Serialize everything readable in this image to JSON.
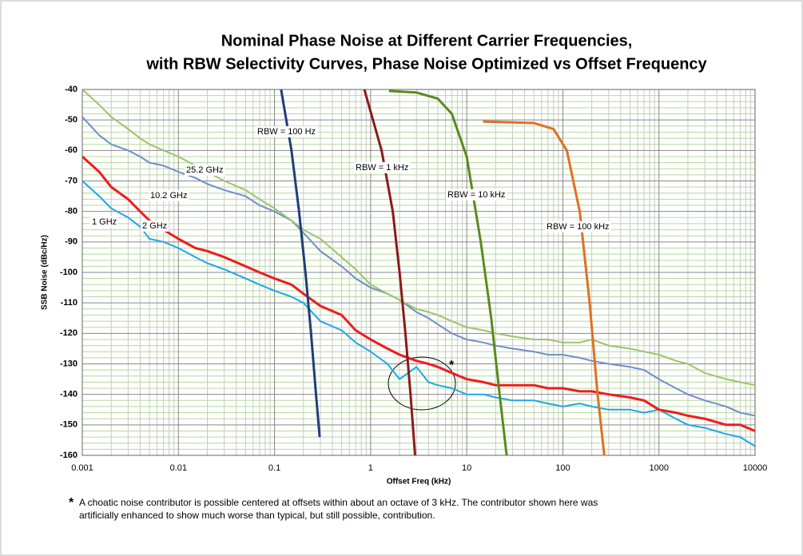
{
  "chart_data": {
    "type": "line",
    "title": [
      "Nominal Phase Noise at Different Carrier Frequencies,",
      "with RBW Selectivity Curves, Phase Noise Optimized vs Offset Frequency"
    ],
    "xlabel": "Offset Freq (kHz)",
    "ylabel": "SSB Noise (dBc/Hz)",
    "xscale": "log",
    "xlim": [
      0.001,
      10000
    ],
    "xticks": [
      0.001,
      0.01,
      0.1,
      1,
      10,
      100,
      1000,
      10000
    ],
    "ylim": [
      -160,
      -40
    ],
    "yticks": [
      -160,
      -150,
      -140,
      -130,
      -120,
      -110,
      -100,
      -90,
      -80,
      -70,
      -60,
      -50,
      -40
    ],
    "grid": true,
    "minor_grid": true,
    "series": [
      {
        "name": "1 GHz",
        "color": "#1ea7e6",
        "x": [
          0.001,
          0.0015,
          0.002,
          0.003,
          0.004,
          0.005,
          0.007,
          0.01,
          0.015,
          0.02,
          0.03,
          0.05,
          0.07,
          0.1,
          0.15,
          0.2,
          0.3,
          0.5,
          0.7,
          1,
          1.5,
          2,
          3,
          4,
          5,
          7,
          10,
          15,
          20,
          30,
          50,
          70,
          100,
          150,
          200,
          300,
          500,
          700,
          1000,
          1500,
          2000,
          3000,
          5000,
          7000,
          10000
        ],
        "values": [
          -70,
          -75,
          -79,
          -82,
          -85,
          -89,
          -90,
          -92,
          -95,
          -97,
          -99,
          -102,
          -104,
          -106,
          -108,
          -110,
          -116,
          -119,
          -123,
          -126,
          -130,
          -135,
          -131,
          -136,
          -137,
          -138,
          -140,
          -140,
          -141,
          -142,
          -142,
          -143,
          -144,
          -143,
          -144,
          -145,
          -145,
          -146,
          -145,
          -148,
          -150,
          -151,
          -153,
          -154,
          -157
        ]
      },
      {
        "name": "2 GHz",
        "color": "#ee1c1c",
        "x": [
          0.001,
          0.0015,
          0.002,
          0.003,
          0.004,
          0.005,
          0.007,
          0.01,
          0.015,
          0.02,
          0.03,
          0.05,
          0.07,
          0.1,
          0.15,
          0.2,
          0.3,
          0.5,
          0.7,
          1,
          1.5,
          2,
          3,
          4,
          5,
          7,
          10,
          15,
          20,
          30,
          50,
          70,
          100,
          150,
          200,
          300,
          500,
          700,
          1000,
          1500,
          2000,
          3000,
          5000,
          7000,
          10000
        ],
        "values": [
          -62,
          -67,
          -72,
          -76,
          -80,
          -83,
          -86,
          -89,
          -92,
          -93,
          -95,
          -98,
          -100,
          -102,
          -104,
          -107,
          -111,
          -114,
          -119,
          -122,
          -125,
          -127,
          -129,
          -130,
          -131,
          -133,
          -135,
          -136,
          -137,
          -137,
          -137,
          -138,
          -138,
          -139,
          -139,
          -140,
          -141,
          -142,
          -145,
          -146,
          -147,
          -148,
          -150,
          -150,
          -152
        ]
      },
      {
        "name": "10.2 GHz",
        "color": "#6f8fc9",
        "x": [
          0.001,
          0.0015,
          0.002,
          0.003,
          0.004,
          0.005,
          0.007,
          0.01,
          0.015,
          0.02,
          0.03,
          0.05,
          0.07,
          0.1,
          0.15,
          0.2,
          0.3,
          0.5,
          0.7,
          1,
          1.5,
          2,
          3,
          4,
          5,
          7,
          10,
          15,
          20,
          30,
          50,
          70,
          100,
          150,
          200,
          300,
          500,
          700,
          1000,
          1500,
          2000,
          3000,
          5000,
          7000,
          10000
        ],
        "values": [
          -49,
          -55,
          -58,
          -60,
          -62,
          -64,
          -65,
          -67,
          -69,
          -71,
          -73,
          -75,
          -78,
          -80,
          -83,
          -87,
          -93,
          -98,
          -102,
          -105,
          -107,
          -109,
          -113,
          -115,
          -117,
          -120,
          -122,
          -123,
          -124,
          -125,
          -126,
          -127,
          -127,
          -128,
          -129,
          -130,
          -131,
          -132,
          -135,
          -138,
          -140,
          -142,
          -144,
          -146,
          -147
        ]
      },
      {
        "name": "25.2 GHz",
        "color": "#9dc36b",
        "x": [
          0.001,
          0.0015,
          0.002,
          0.003,
          0.004,
          0.005,
          0.007,
          0.01,
          0.015,
          0.02,
          0.03,
          0.05,
          0.07,
          0.1,
          0.15,
          0.2,
          0.3,
          0.5,
          0.7,
          1,
          1.5,
          2,
          3,
          4,
          5,
          7,
          10,
          15,
          20,
          30,
          50,
          70,
          100,
          150,
          200,
          300,
          500,
          700,
          1000,
          1500,
          2000,
          3000,
          5000,
          7000,
          10000
        ],
        "values": [
          -40,
          -45,
          -49,
          -53,
          -56,
          -58,
          -60,
          -62,
          -65,
          -67,
          -70,
          -73,
          -76,
          -79,
          -83,
          -86,
          -89,
          -95,
          -99,
          -104,
          -107,
          -109,
          -112,
          -113,
          -114,
          -116,
          -118,
          -119,
          -120,
          -121,
          -122,
          -122,
          -123,
          -123,
          -122,
          -124,
          -125,
          -126,
          -127,
          -129,
          -130,
          -133,
          -135,
          -136,
          -137
        ]
      },
      {
        "name": "RBW = 100 Hz",
        "color": "#1f3d7a",
        "x": [
          0.117,
          0.15,
          0.18,
          0.21,
          0.24,
          0.27,
          0.295
        ],
        "values": [
          -40,
          -60,
          -80,
          -100,
          -120,
          -140,
          -154
        ]
      },
      {
        "name": "RBW = 1 kHz",
        "color": "#8b1a1a",
        "x": [
          0.86,
          1.3,
          1.7,
          2.0,
          2.3,
          2.6,
          2.9
        ],
        "values": [
          -40,
          -60,
          -80,
          -100,
          -120,
          -140,
          -160
        ]
      },
      {
        "name": "RBW = 10 kHz",
        "color": "#5a8a1e",
        "x": [
          1.55,
          3,
          5,
          7,
          10,
          14,
          18,
          22,
          26
        ],
        "values": [
          -40.5,
          -41,
          -43,
          -48,
          -62,
          -90,
          -115,
          -140,
          -160
        ]
      },
      {
        "name": "RBW = 100 kHz",
        "color": "#e07020",
        "x": [
          14.8,
          50,
          80,
          110,
          150,
          190,
          230,
          270
        ],
        "values": [
          -50.5,
          -51,
          -53,
          -60,
          -80,
          -110,
          -140,
          -160
        ]
      }
    ],
    "annotation": "*",
    "footnote_marker": "*",
    "footnote": [
      "A choatic noise contributor is possible centered at offsets within about an octave of 3 kHz. The contributor shown here was",
      "artificially enhanced to show much worse than typical, but still possible, contribution."
    ]
  }
}
